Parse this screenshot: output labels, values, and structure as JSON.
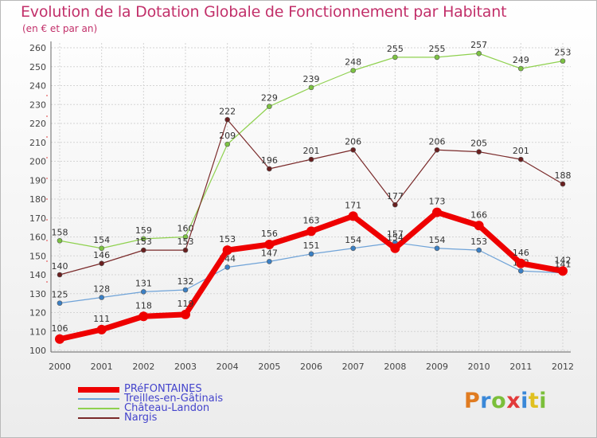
{
  "title": "Evolution de la Dotation Globale de Fonctionnement par Habitant",
  "subtitle": "(en € et par an)",
  "logo": {
    "text": "Proxiti",
    "colors": [
      "#e07b20",
      "#3a88d8",
      "#7bbf3a",
      "#e23a3a",
      "#3a88d8",
      "#e0c020",
      "#7bbf3a"
    ]
  },
  "chart_data": {
    "type": "line",
    "title": "Evolution de la Dotation Globale de Fonctionnement par Habitant",
    "subtitle": "(en € et par an)",
    "xlabel": "",
    "ylabel": "",
    "ylim": [
      100,
      260
    ],
    "ytick_step": 10,
    "grid": true,
    "legend_position": "bottom-left",
    "x": [
      "2000",
      "2001",
      "2002",
      "2003",
      "2004",
      "2005",
      "2006",
      "2007",
      "2008",
      "2009",
      "2010",
      "2011",
      "2012"
    ],
    "series": [
      {
        "name": "Château-Landon",
        "color": "#8fd14f",
        "marker": "#7cc242",
        "width": 1.2,
        "values": [
          158,
          154,
          159,
          160,
          209,
          229,
          239,
          248,
          255,
          255,
          257,
          249,
          253
        ]
      },
      {
        "name": "Nargis",
        "color": "#7a2a2a",
        "marker": "#6a1f1f",
        "width": 1.2,
        "values": [
          140,
          146,
          153,
          153,
          222,
          196,
          201,
          206,
          177,
          206,
          205,
          201,
          188
        ]
      },
      {
        "name": "Treilles-en-Gâtinais",
        "color": "#6fa3d8",
        "marker": "#3a7fc4",
        "width": 1.2,
        "values": [
          125,
          128,
          131,
          132,
          144,
          147,
          151,
          154,
          157,
          154,
          153,
          142,
          141
        ]
      },
      {
        "name": "PRéFONTAINES",
        "color": "#ee0000",
        "marker": "#ee0000",
        "width": 7,
        "values": [
          106,
          111,
          118,
          119,
          153,
          156,
          163,
          171,
          154,
          173,
          166,
          146,
          142
        ]
      }
    ],
    "legend_order": [
      "PRéFONTAINES",
      "Treilles-en-Gâtinais",
      "Château-Landon",
      "Nargis"
    ]
  }
}
